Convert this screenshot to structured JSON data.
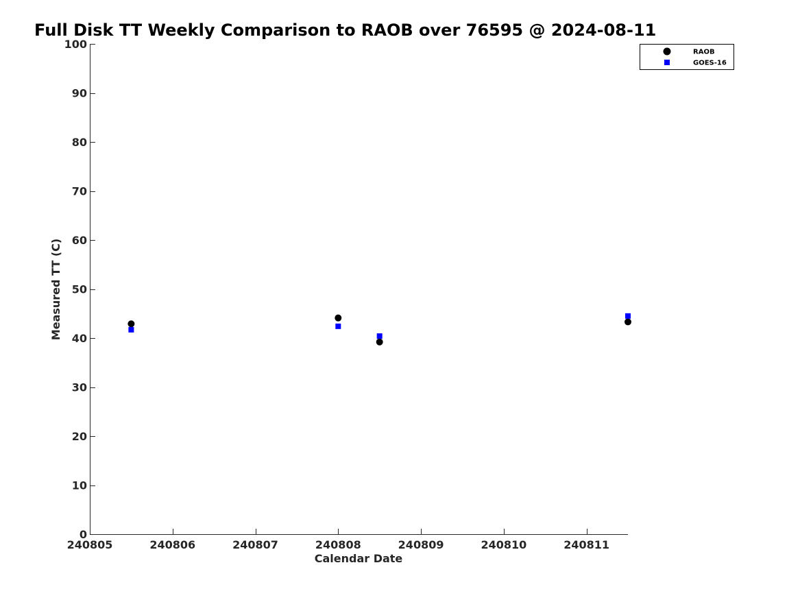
{
  "chart_data": {
    "type": "scatter",
    "title": "Full Disk TT Weekly Comparison to RAOB over 76595 @ 2024-08-11",
    "xlabel": "Calendar Date",
    "ylabel": "Measured TT (C)",
    "xlim": [
      "2024-08-05",
      "2024-08-11T12:00"
    ],
    "ylim": [
      0,
      100
    ],
    "x_ticks": [
      {
        "label": "240805",
        "value": "2024-08-05"
      },
      {
        "label": "240806",
        "value": "2024-08-06"
      },
      {
        "label": "240807",
        "value": "2024-08-07"
      },
      {
        "label": "240808",
        "value": "2024-08-08"
      },
      {
        "label": "240809",
        "value": "2024-08-09"
      },
      {
        "label": "240810",
        "value": "2024-08-10"
      },
      {
        "label": "240811",
        "value": "2024-08-11"
      }
    ],
    "y_ticks": [
      0,
      10,
      20,
      30,
      40,
      50,
      60,
      70,
      80,
      90,
      100
    ],
    "grid": false,
    "legend_position": "top-right",
    "series": [
      {
        "name": "RAOB",
        "marker": "circle",
        "color": "#000000",
        "points": [
          {
            "x": "2024-08-05T12:00",
            "y": 42.9
          },
          {
            "x": "2024-08-08T00:00",
            "y": 44.1
          },
          {
            "x": "2024-08-08T12:00",
            "y": 39.2
          },
          {
            "x": "2024-08-11T12:00",
            "y": 43.3
          }
        ]
      },
      {
        "name": "GOES-16",
        "marker": "square",
        "color": "#0000ff",
        "points": [
          {
            "x": "2024-08-05T12:00",
            "y": 41.7
          },
          {
            "x": "2024-08-08T00:00",
            "y": 42.4
          },
          {
            "x": "2024-08-08T12:00",
            "y": 40.4
          },
          {
            "x": "2024-08-11T12:00",
            "y": 44.5
          }
        ]
      }
    ]
  }
}
